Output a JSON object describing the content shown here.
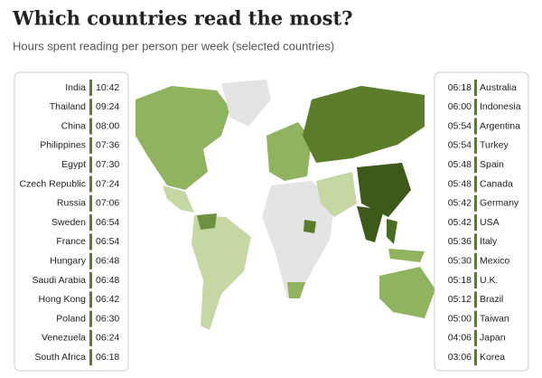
{
  "title": "Which countries read the most?",
  "subtitle": "Hours spent reading per person per week (selected countries)",
  "left_list": [
    {
      "country": "India",
      "time": "10:42"
    },
    {
      "country": "Thailand",
      "time": "09:24"
    },
    {
      "country": "China",
      "time": "08:00"
    },
    {
      "country": "Philippines",
      "time": "07:36"
    },
    {
      "country": "Egypt",
      "time": "07:30"
    },
    {
      "country": "Czech Republic",
      "time": "07:24"
    },
    {
      "country": "Russia",
      "time": "07:06"
    },
    {
      "country": "Sweden",
      "time": "06:54"
    },
    {
      "country": "France",
      "time": "06:54"
    },
    {
      "country": "Hungary",
      "time": "06:48"
    },
    {
      "country": "Saudi Arabia",
      "time": "06:48"
    },
    {
      "country": "Hong Kong",
      "time": "06:42"
    },
    {
      "country": "Poland",
      "time": "06:30"
    },
    {
      "country": "Venezuela",
      "time": "06:24"
    },
    {
      "country": "South Africa",
      "time": "06:18"
    }
  ],
  "right_list": [
    {
      "country": "Australia",
      "time": "06:18"
    },
    {
      "country": "Indonesia",
      "time": "06:00"
    },
    {
      "country": "Argentina",
      "time": "05:54"
    },
    {
      "country": "Turkey",
      "time": "05:54"
    },
    {
      "country": "Spain",
      "time": "05:48"
    },
    {
      "country": "Canada",
      "time": "05:48"
    },
    {
      "country": "Germany",
      "time": "05:42"
    },
    {
      "country": "USA",
      "time": "05:42"
    },
    {
      "country": "Italy",
      "time": "05:36"
    },
    {
      "country": "Mexico",
      "time": "05:30"
    },
    {
      "country": "U.K.",
      "time": "05:18"
    },
    {
      "country": "Brazil",
      "time": "05:12"
    },
    {
      "country": "Taiwan",
      "time": "05:00"
    },
    {
      "country": "Japan",
      "time": "04:06"
    },
    {
      "country": "Korea",
      "time": "03:06"
    }
  ]
}
